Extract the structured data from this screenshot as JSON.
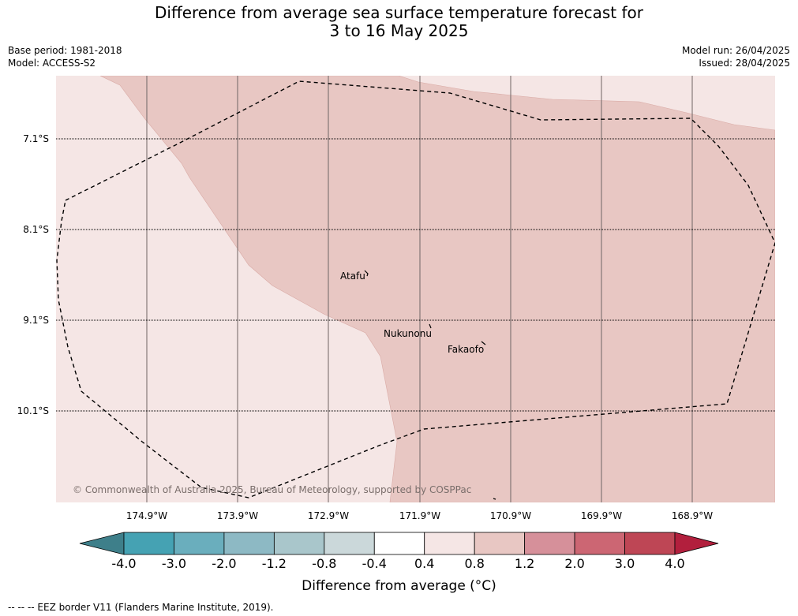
{
  "title": "Difference from average sea surface temperature forecast for\n3 to 16 May 2025",
  "meta_left": [
    "Base period: 1981-2018",
    "Model: ACCESS-S2"
  ],
  "meta_right": [
    "Model run: 26/04/2025",
    "Issued: 28/04/2025"
  ],
  "latitude_labels": [
    "7.1°S",
    "8.1°S",
    "9.1°S",
    "10.1°S"
  ],
  "longitude_labels": [
    "174.9°W",
    "173.9°W",
    "172.9°W",
    "171.9°W",
    "170.9°W",
    "169.9°W",
    "168.9°W"
  ],
  "places": [
    "Atafu",
    "Nukunonu",
    "Fakaofo"
  ],
  "copyright": "© Commonwealth of Australia 2025, Bureau of Meteorology, supported by COSPPac",
  "colorbar": {
    "ticks": [
      "-4.0",
      "-3.0",
      "-2.0",
      "-1.2",
      "-0.8",
      "-0.4",
      "0.4",
      "0.8",
      "1.2",
      "2.0",
      "3.0",
      "4.0"
    ],
    "colors": [
      "#3e7f8a",
      "#45a2b3",
      "#6aaebd",
      "#8db9c4",
      "#a9c6cb",
      "#cbd8da",
      "#ffffff",
      "#f5e6e5",
      "#e8c7c3",
      "#d6909a",
      "#cc6673",
      "#be4655",
      "#b21f3d"
    ],
    "label": "Difference from average (°C)"
  },
  "map_colors": {
    "light": "#f5e6e5",
    "medium": "#e8c7c3"
  },
  "footnote": "--  --  -- EEZ border V11 (Flanders Marine Institute, 2019)."
}
